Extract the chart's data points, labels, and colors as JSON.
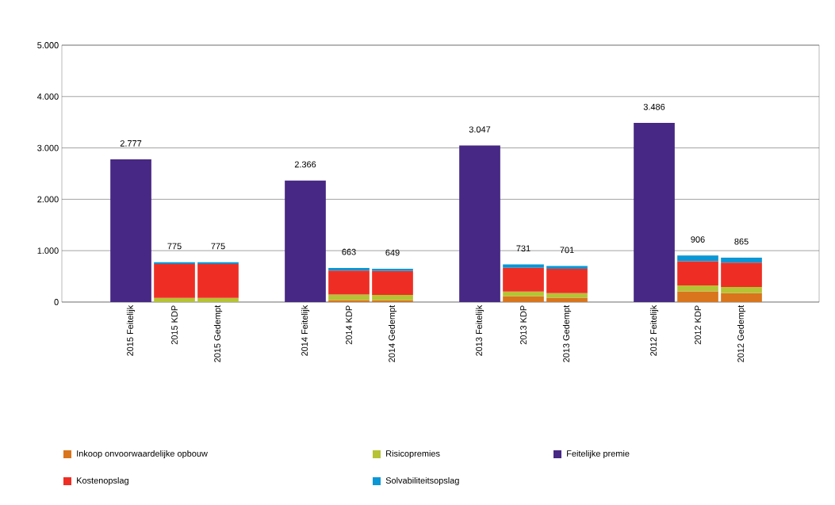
{
  "chart_data": {
    "type": "bar",
    "stacked": true,
    "categories": [
      "2015 Feitelijk",
      "2015 KDP",
      "2015 Gedempt",
      null,
      "2014 Feitelijk",
      "2014 KDP",
      "2014 Gedempt",
      null,
      "2013 Feitelijk",
      "2013 KDP",
      "2013 Gedempt",
      null,
      "2012 Feitelijk",
      "2012 KDP",
      "2012 Gedempt"
    ],
    "series": [
      {
        "name": "Inkoop onvoorwaardelijke opbouw",
        "color": "#d9751c",
        "values": [
          null,
          0,
          0,
          null,
          null,
          40,
          35,
          null,
          null,
          110,
          85,
          null,
          null,
          208,
          172
        ]
      },
      {
        "name": "Risicopremies",
        "color": "#b5c334",
        "values": [
          null,
          80,
          80,
          null,
          null,
          105,
          105,
          null,
          null,
          95,
          90,
          null,
          null,
          115,
          120
        ]
      },
      {
        "name": "Feitelijke premie",
        "color": "#472884",
        "values": [
          2777,
          null,
          null,
          null,
          2366,
          null,
          null,
          null,
          3047,
          null,
          null,
          null,
          3486,
          null,
          null
        ]
      },
      {
        "name": "Kostenopslag",
        "color": "#ee2e24",
        "values": [
          null,
          660,
          660,
          null,
          null,
          470,
          465,
          null,
          null,
          463,
          473,
          null,
          null,
          473,
          475
        ]
      },
      {
        "name": "Solvabiliteitsopslag",
        "color": "#0b97d5",
        "values": [
          null,
          35,
          35,
          null,
          null,
          48,
          44,
          null,
          null,
          63,
          53,
          null,
          null,
          110,
          98
        ]
      }
    ],
    "totals": [
      "2.777",
      "775",
      "775",
      null,
      "2.366",
      "663",
      "649",
      null,
      "3.047",
      "731",
      "701",
      null,
      "3.486",
      "906",
      "865"
    ],
    "ylim": [
      0,
      5000
    ],
    "yticks": [
      {
        "value": 0,
        "label": "0"
      },
      {
        "value": 1000,
        "label": "1.000"
      },
      {
        "value": 2000,
        "label": "2.000"
      },
      {
        "value": 3000,
        "label": "3.000"
      },
      {
        "value": 4000,
        "label": "4.000"
      },
      {
        "value": 5000,
        "label": "5.000"
      }
    ],
    "grid": "y",
    "legend": "bottom"
  }
}
